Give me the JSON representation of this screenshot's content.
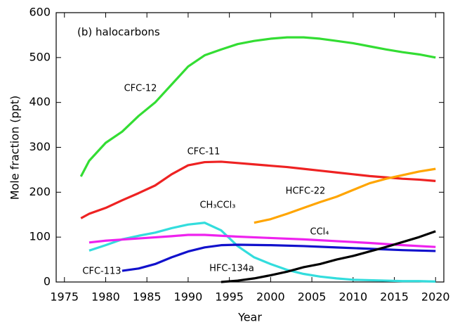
{
  "chart_data": {
    "type": "line",
    "annotation": "(b) halocarbons",
    "xlabel": "Year",
    "ylabel": "Mole fraction (ppt)",
    "xlim": [
      1974,
      2021
    ],
    "ylim": [
      0,
      600
    ],
    "xticks": [
      1975,
      1980,
      1985,
      1990,
      1995,
      2000,
      2005,
      2010,
      2015,
      2020
    ],
    "yticks": [
      0,
      100,
      200,
      300,
      400,
      500,
      600
    ],
    "series": [
      {
        "name": "CFC-12",
        "color": "#33dd33",
        "x": [
          1977,
          1978,
          1979,
          1980,
          1982,
          1984,
          1986,
          1988,
          1990,
          1992,
          1994,
          1996,
          1998,
          2000,
          2002,
          2004,
          2006,
          2008,
          2010,
          2012,
          2014,
          2016,
          2018,
          2020
        ],
        "values": [
          235,
          270,
          290,
          310,
          335,
          370,
          400,
          440,
          480,
          505,
          518,
          530,
          537,
          542,
          545,
          545,
          542,
          537,
          532,
          525,
          518,
          512,
          507,
          500
        ]
      },
      {
        "name": "CFC-11",
        "color": "#ee2222",
        "x": [
          1977,
          1978,
          1980,
          1982,
          1984,
          1986,
          1988,
          1990,
          1992,
          1994,
          1996,
          1998,
          2000,
          2002,
          2004,
          2006,
          2008,
          2010,
          2012,
          2014,
          2016,
          2018,
          2020
        ],
        "values": [
          142,
          152,
          165,
          182,
          198,
          215,
          240,
          260,
          267,
          268,
          265,
          262,
          259,
          256,
          252,
          248,
          244,
          240,
          236,
          233,
          230,
          228,
          225
        ]
      },
      {
        "name": "HCFC-22",
        "color": "#ffa500",
        "x": [
          1998,
          2000,
          2002,
          2004,
          2006,
          2008,
          2010,
          2012,
          2014,
          2016,
          2018,
          2020
        ],
        "values": [
          132,
          140,
          152,
          165,
          178,
          190,
          205,
          220,
          230,
          238,
          246,
          252
        ]
      },
      {
        "name": "CH₃CCl₃",
        "color": "#33dddd",
        "x": [
          1978,
          1980,
          1982,
          1984,
          1986,
          1988,
          1990,
          1992,
          1994,
          1996,
          1998,
          2000,
          2002,
          2004,
          2006,
          2008,
          2010,
          2012,
          2014,
          2016,
          2018,
          2020
        ],
        "values": [
          70,
          82,
          95,
          103,
          110,
          120,
          128,
          132,
          115,
          80,
          55,
          40,
          27,
          18,
          12,
          8,
          5,
          4,
          3,
          2,
          2,
          1
        ]
      },
      {
        "name": "CCl₄",
        "color": "#ee22ee",
        "x": [
          1978,
          1980,
          1984,
          1988,
          1990,
          1992,
          1994,
          1996,
          2000,
          2004,
          2008,
          2012,
          2016,
          2020
        ],
        "values": [
          88,
          92,
          97,
          102,
          105,
          105,
          103,
          101,
          98,
          95,
          91,
          87,
          82,
          78
        ]
      },
      {
        "name": "CFC-113",
        "color": "#1111cc",
        "x": [
          1982,
          1984,
          1986,
          1988,
          1990,
          1992,
          1994,
          1996,
          2000,
          2004,
          2008,
          2012,
          2016,
          2020
        ],
        "values": [
          25,
          30,
          40,
          55,
          68,
          77,
          82,
          83,
          82,
          80,
          77,
          74,
          71,
          69
        ]
      },
      {
        "name": "HFC-134a",
        "color": "#000000",
        "x": [
          1994,
          1996,
          1998,
          2000,
          2002,
          2004,
          2006,
          2008,
          2010,
          2012,
          2014,
          2016,
          2018,
          2020
        ],
        "values": [
          0,
          3,
          8,
          15,
          23,
          33,
          40,
          50,
          58,
          68,
          78,
          89,
          100,
          113
        ]
      }
    ]
  }
}
